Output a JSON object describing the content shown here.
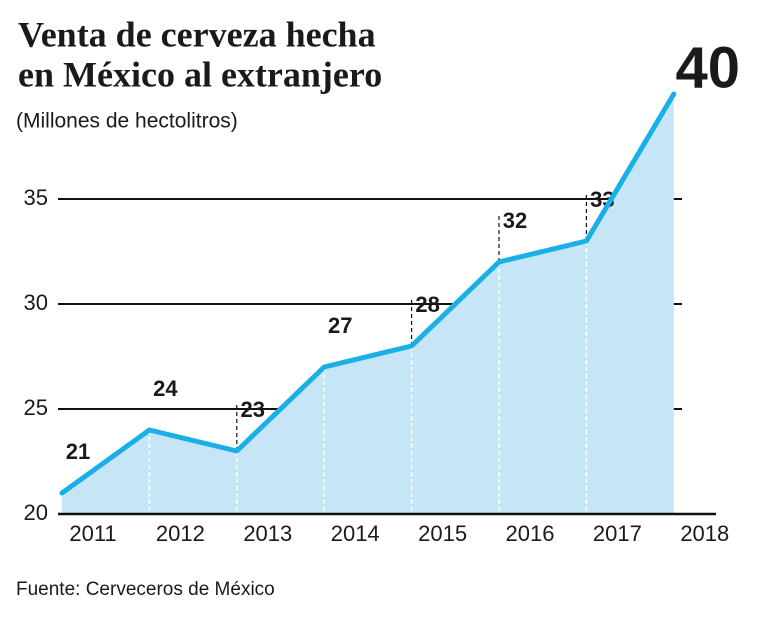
{
  "chart_data": {
    "type": "line",
    "title": [
      "Venta de cerveza hecha",
      "en México al extranjero"
    ],
    "subtitle": "(Millones de hectolitros)",
    "source": "Fuente: Cerveceros de México",
    "categories": [
      "2011",
      "2012",
      "2013",
      "2014",
      "2015",
      "2016",
      "2017",
      "2018"
    ],
    "values": [
      21,
      24,
      23,
      27,
      28,
      32,
      33,
      40
    ],
    "color": "#1aafe6",
    "area_color": "#c6e5f7",
    "ylim": [
      20,
      40
    ],
    "yticks": [
      20,
      25,
      30,
      35
    ],
    "grid": true
  }
}
